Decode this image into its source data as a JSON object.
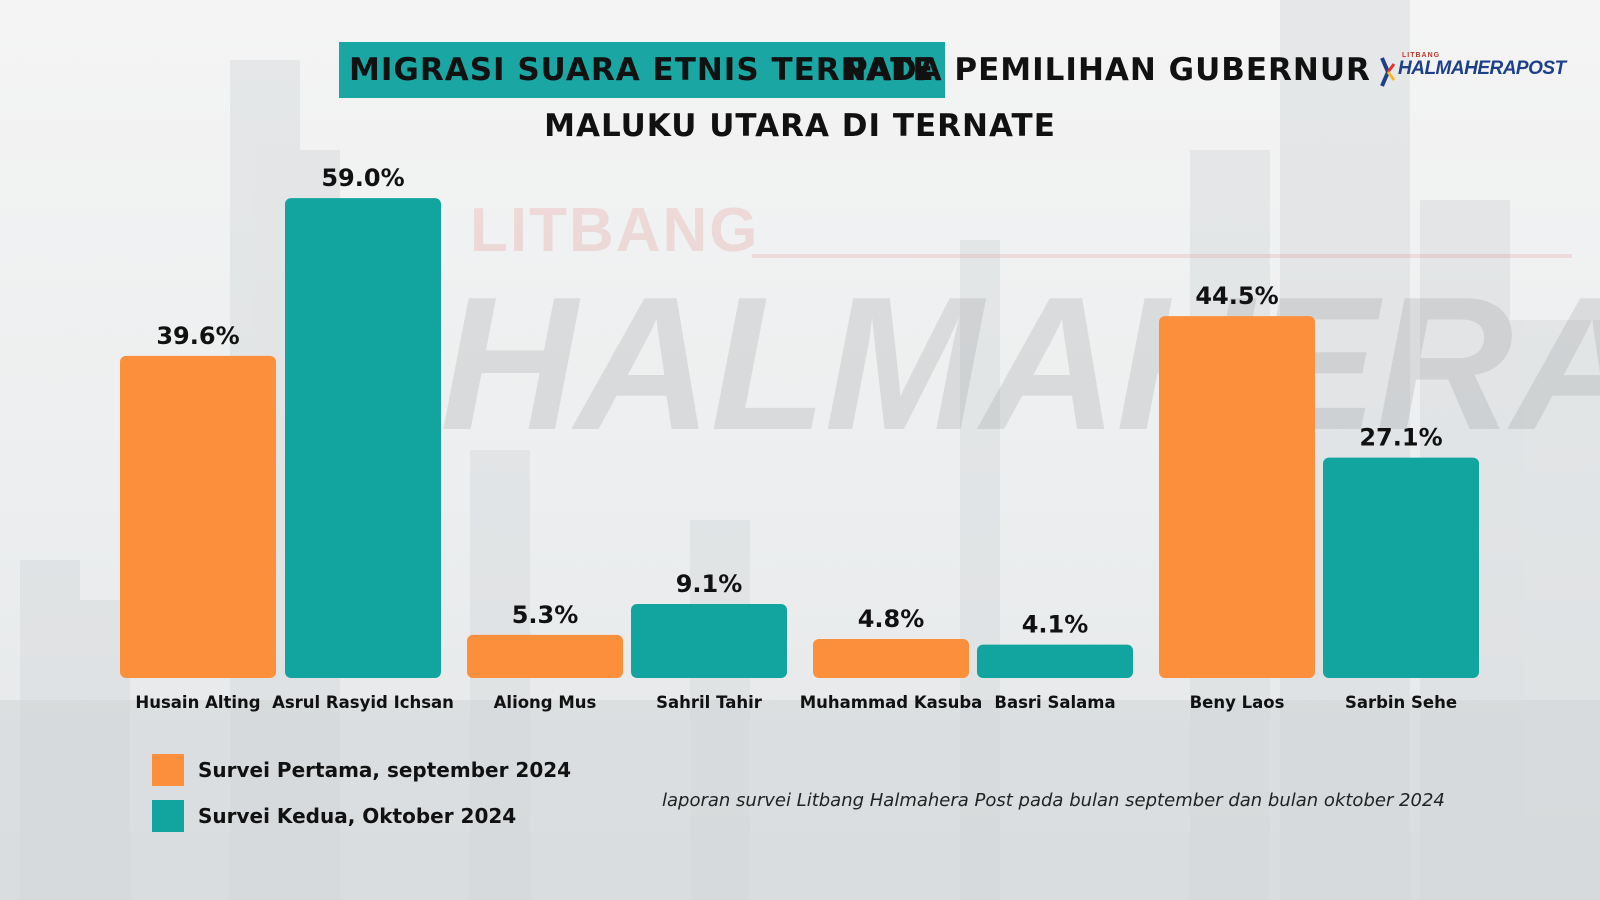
{
  "title": {
    "highlight": "MIGRASI SUARA ETNIS TERNATE",
    "rest": "PADA PEMILIHAN GUBERNUR",
    "line2": "MALUKU UTARA DI TERNATE"
  },
  "logo": {
    "small": "LITBANG",
    "name": "HALMAHERAPOST"
  },
  "watermark": {
    "top": "LITBANG",
    "main": "HALMAHERAPOST"
  },
  "colors": {
    "survey1": "#fb8f3c",
    "survey2": "#12a5a0",
    "title_highlight": "#1aa7a3"
  },
  "chart_data": {
    "type": "bar",
    "title": "MIGRASI SUARA ETNIS TERNATE PADA PEMILIHAN GUBERNUR MALUKU UTARA DI TERNATE",
    "ylim": [
      0,
      60
    ],
    "categories": [
      "Husain Alting",
      "Asrul Rasyid Ichsan",
      "Aliong Mus",
      "Sahril Tahir",
      "Muhammad Kasuba",
      "Basri Salama",
      "Beny Laos",
      "Sarbin Sehe"
    ],
    "bars": [
      {
        "name": "Husain Alting",
        "value": 39.6,
        "label": "39.6%",
        "series": "Survei Pertama, september 2024"
      },
      {
        "name": "Asrul Rasyid Ichsan",
        "value": 59.0,
        "label": "59.0%",
        "series": "Survei Kedua, Oktober 2024"
      },
      {
        "name": "Aliong Mus",
        "value": 5.3,
        "label": "5.3%",
        "series": "Survei Pertama, september 2024"
      },
      {
        "name": "Sahril Tahir",
        "value": 9.1,
        "label": "9.1%",
        "series": "Survei Kedua, Oktober 2024"
      },
      {
        "name": "Muhammad Kasuba",
        "value": 4.8,
        "label": "4.8%",
        "series": "Survei Pertama, september 2024"
      },
      {
        "name": "Basri Salama",
        "value": 4.1,
        "label": "4.1%",
        "series": "Survei Kedua, Oktober 2024"
      },
      {
        "name": "Beny Laos",
        "value": 44.5,
        "label": "44.5%",
        "series": "Survei Pertama, september 2024"
      },
      {
        "name": "Sarbin Sehe",
        "value": 27.1,
        "label": "27.1%",
        "series": "Survei Kedua, Oktober 2024"
      }
    ],
    "series": [
      {
        "name": "Survei Pertama, september 2024",
        "color": "#fb8f3c"
      },
      {
        "name": "Survei Kedua, Oktober 2024",
        "color": "#12a5a0"
      }
    ],
    "legend_position": "bottom-left",
    "grid": false
  },
  "legend": [
    {
      "label": "Survei Pertama, september 2024",
      "color": "#fb8f3c"
    },
    {
      "label": "Survei Kedua, Oktober 2024",
      "color": "#12a5a0"
    }
  ],
  "source_note": "laporan survei Litbang Halmahera Post pada  bulan september dan bulan oktober 2024"
}
